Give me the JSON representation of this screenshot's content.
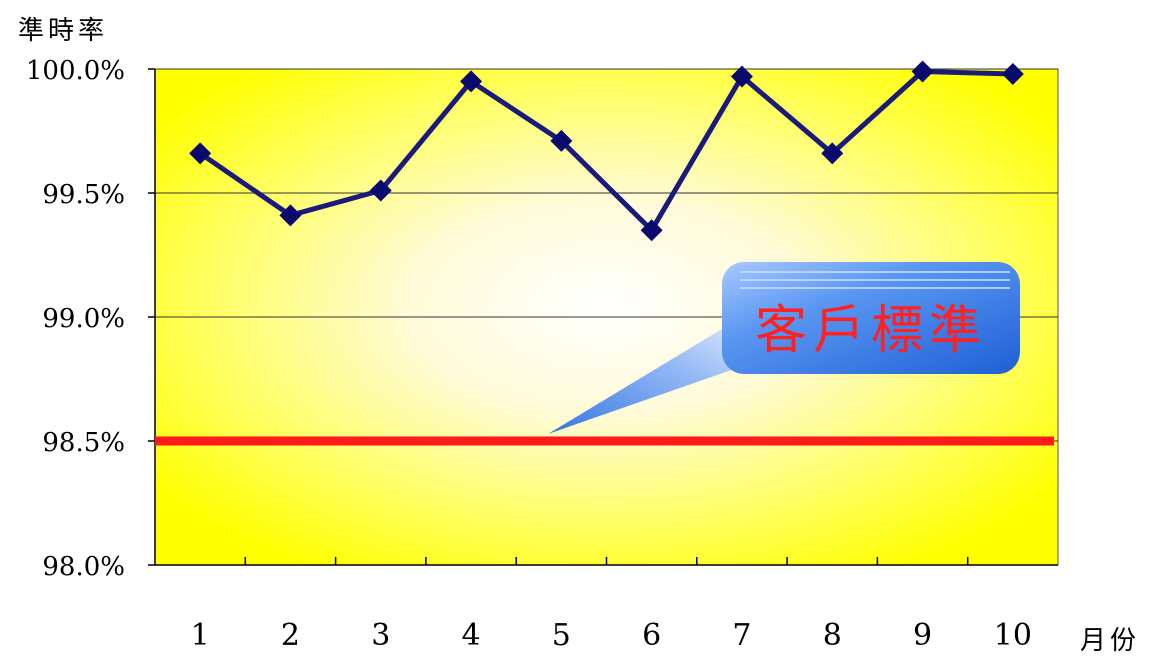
{
  "chart_data": {
    "type": "line",
    "ylabel": "準時率",
    "xlabel": "月份",
    "categories": [
      "1",
      "2",
      "3",
      "4",
      "5",
      "6",
      "7",
      "8",
      "9",
      "10"
    ],
    "series": [
      {
        "values": [
          99.66,
          99.41,
          99.51,
          99.95,
          99.71,
          99.35,
          99.97,
          99.66,
          99.99,
          99.98
        ]
      }
    ],
    "reference_line": {
      "label": "客戶標準",
      "value": 98.5
    },
    "ylim": [
      98.0,
      100.0
    ],
    "yticks": [
      "98.0%",
      "98.5%",
      "99.0%",
      "99.5%",
      "100.0%"
    ],
    "ytick_values": [
      98.0,
      98.5,
      99.0,
      99.5,
      100.0
    ],
    "colors": {
      "series_line": "#1a1a7a",
      "marker": "#0a0a6e",
      "reference_line": "#ff1a1a",
      "plot_bg_outer": "#ffff00",
      "plot_bg_inner": "#ffffff",
      "callout_fill": "#2a6fe0",
      "callout_text": "#ff2020"
    },
    "grid": true
  }
}
